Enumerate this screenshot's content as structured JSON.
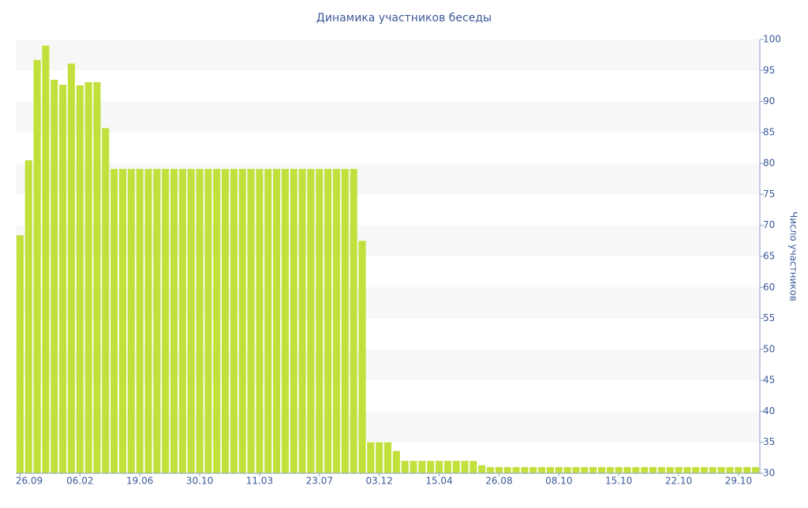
{
  "chart_data": {
    "type": "bar",
    "title": "Динамика участников беседы",
    "y_label": "Число участников",
    "color": "#c2e03c",
    "ylim": [
      30,
      100
    ],
    "yticks": [
      30,
      35,
      40,
      45,
      50,
      55,
      60,
      65,
      70,
      75,
      80,
      85,
      90,
      95,
      100
    ],
    "grid": true,
    "categories": [
      "26.09",
      null,
      null,
      null,
      null,
      null,
      null,
      "06.02",
      null,
      null,
      null,
      null,
      null,
      null,
      "19.06",
      null,
      null,
      null,
      null,
      null,
      null,
      "30.10",
      null,
      null,
      null,
      null,
      null,
      null,
      "11.03",
      null,
      null,
      null,
      null,
      null,
      null,
      "23.07",
      null,
      null,
      null,
      null,
      null,
      null,
      "03.12",
      null,
      null,
      null,
      null,
      null,
      null,
      "15.04",
      null,
      null,
      null,
      null,
      null,
      null,
      "26.08",
      null,
      null,
      null,
      null,
      null,
      null,
      "08.10",
      null,
      null,
      null,
      null,
      null,
      null,
      "15.10",
      null,
      null,
      null,
      null,
      null,
      null,
      "22.10",
      null,
      null,
      null,
      null,
      null,
      null,
      "29.10",
      null,
      null
    ],
    "values": [
      68.4,
      80.5,
      96.7,
      99,
      93.5,
      92.7,
      96.1,
      92.6,
      93.1,
      93.1,
      85.7,
      79.1,
      79.1,
      79.1,
      79.1,
      79.1,
      79.1,
      79.1,
      79.1,
      79.1,
      79.1,
      79.1,
      79.1,
      79.1,
      79.1,
      79.1,
      79.1,
      79.1,
      79.1,
      79.1,
      79.1,
      79.1,
      79.1,
      79.1,
      79.1,
      79.1,
      79.1,
      79.1,
      79.1,
      79.1,
      67.5,
      35,
      35,
      35,
      33.6,
      32,
      32,
      32,
      32,
      32,
      32,
      32,
      32,
      32,
      31.3,
      31,
      31,
      31,
      31,
      31,
      31,
      31,
      31,
      31,
      31,
      31,
      31,
      31,
      31,
      31,
      31,
      31,
      31,
      31,
      31,
      31,
      31,
      31,
      31,
      31,
      31,
      31,
      31,
      31,
      31,
      31,
      31
    ]
  }
}
